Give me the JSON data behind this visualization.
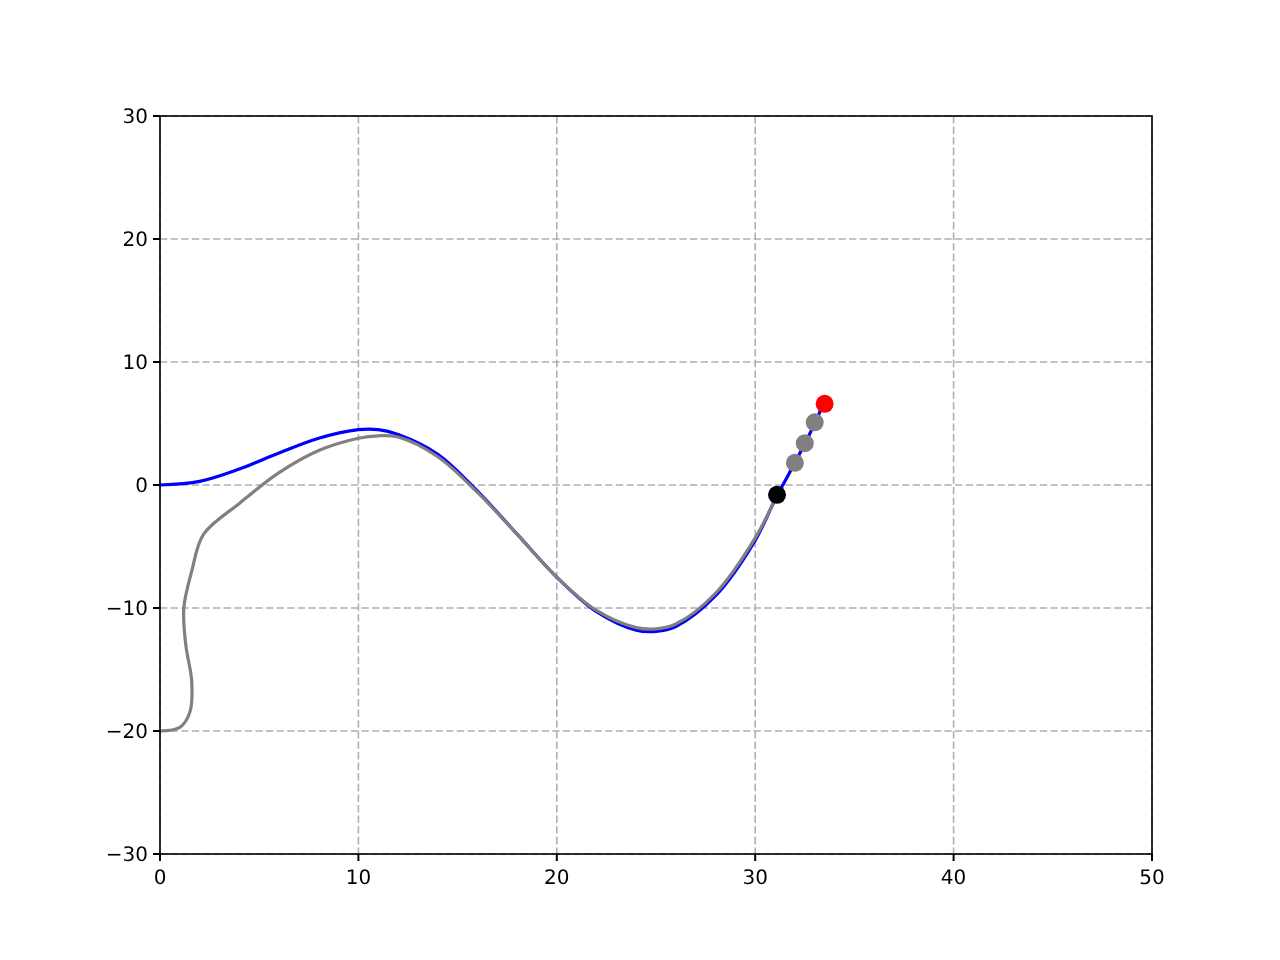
{
  "chart_data": {
    "type": "line",
    "xlim": [
      0,
      50
    ],
    "ylim": [
      -30,
      30
    ],
    "xticks": [
      0,
      10,
      20,
      30,
      40,
      50
    ],
    "yticks": [
      -30,
      -20,
      -10,
      0,
      10,
      20,
      30
    ],
    "grid": true,
    "series": [
      {
        "color": "#0000ff",
        "x": [
          0,
          2,
          4,
          6,
          8,
          10,
          11,
          12,
          14,
          16,
          18,
          20,
          22,
          24,
          25,
          26,
          28,
          30,
          31,
          32,
          33,
          33.4
        ],
        "values": [
          0,
          0.3,
          1.3,
          2.6,
          3.8,
          4.5,
          4.5,
          4.1,
          2.5,
          -0.5,
          -4,
          -7.5,
          -10.3,
          -11.8,
          -11.9,
          -11.5,
          -9,
          -4.5,
          -1.2,
          1.8,
          5,
          6.5
        ]
      },
      {
        "color": "#808080",
        "x": [
          0,
          1,
          1.5,
          1.6,
          1.3,
          1.2,
          1.6,
          2.2,
          4,
          6,
          8,
          10,
          11,
          12,
          14,
          16,
          18,
          20,
          22,
          24,
          25,
          26,
          28,
          30,
          31.1
        ],
        "values": [
          -20,
          -19.7,
          -18.5,
          -16,
          -13,
          -10,
          -7,
          -4,
          -1.5,
          1,
          2.8,
          3.8,
          4,
          3.9,
          2.3,
          -0.6,
          -4,
          -7.5,
          -10.2,
          -11.6,
          -11.7,
          -11.3,
          -8.8,
          -4.3,
          -0.8
        ]
      },
      {
        "type": "scatter",
        "color": "#000000",
        "marker": "circle",
        "x": [
          31.1
        ],
        "values": [
          -0.8
        ]
      },
      {
        "type": "scatter",
        "color": "#808080",
        "marker": "circle",
        "x": [
          32,
          32.5,
          33
        ],
        "values": [
          1.8,
          3.4,
          5.1
        ]
      },
      {
        "type": "scatter",
        "color": "#ff0000",
        "marker": "circle",
        "x": [
          33.5
        ],
        "values": [
          6.6
        ]
      }
    ]
  }
}
